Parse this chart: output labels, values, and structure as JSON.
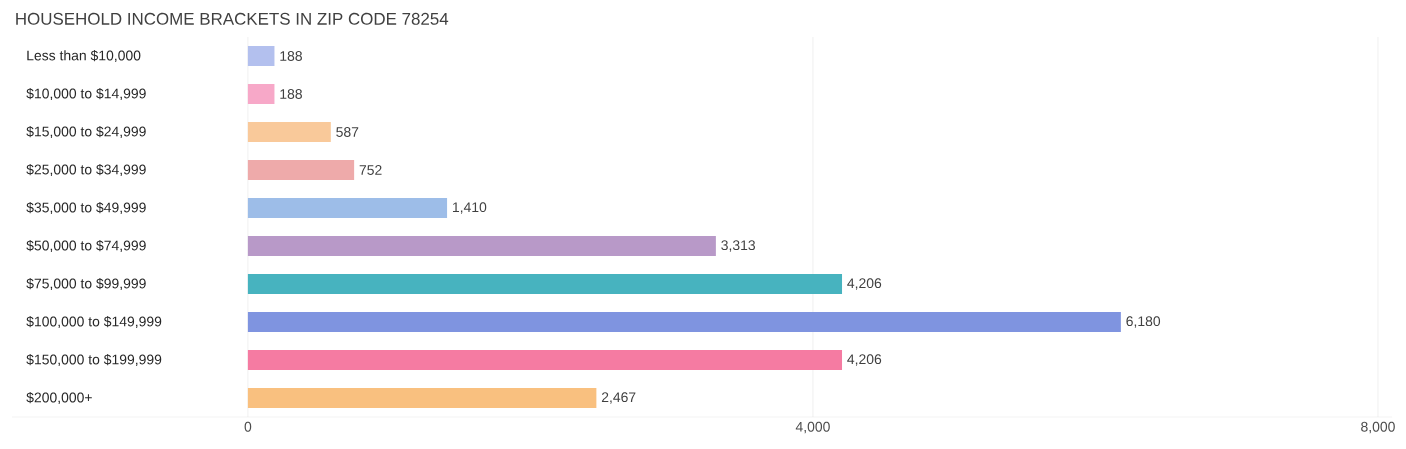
{
  "chart_data": {
    "type": "bar",
    "orientation": "horizontal",
    "title": "HOUSEHOLD INCOME BRACKETS IN ZIP CODE 78254",
    "categories": [
      "Less than $10,000",
      "$10,000 to $14,999",
      "$15,000 to $24,999",
      "$25,000 to $34,999",
      "$35,000 to $49,999",
      "$50,000 to $74,999",
      "$75,000 to $99,999",
      "$100,000 to $149,999",
      "$150,000 to $199,999",
      "$200,000+"
    ],
    "values": [
      188,
      188,
      587,
      752,
      1410,
      3313,
      4206,
      6180,
      4206,
      2467
    ],
    "value_labels": [
      "188",
      "188",
      "587",
      "752",
      "1,410",
      "3,313",
      "4,206",
      "6,180",
      "4,206",
      "2,467"
    ],
    "colors": [
      "#b3c0ee",
      "#f7a8c8",
      "#f9c99a",
      "#eeaaaa",
      "#9dbde8",
      "#b899c8",
      "#47b3bf",
      "#7f94e0",
      "#f57ba2",
      "#f9c07f"
    ],
    "xlim": [
      -1670,
      8100
    ],
    "xticks": [
      {
        "value": 0,
        "label": "0"
      },
      {
        "value": 4000,
        "label": "4,000"
      },
      {
        "value": 8000,
        "label": "8,000"
      }
    ],
    "grid": "x"
  }
}
